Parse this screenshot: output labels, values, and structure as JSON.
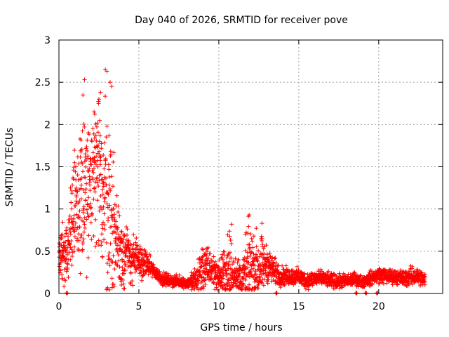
{
  "chart_data": {
    "type": "scatter",
    "title": "Day 040 of 2026, SRMTID for receiver pove",
    "xlabel": "GPS time / hours",
    "ylabel": "SRMTID / TECUs",
    "xlim": [
      0,
      24
    ],
    "ylim": [
      0,
      3
    ],
    "xticks": [
      0,
      5,
      10,
      15,
      20
    ],
    "xtick_labels": [
      "0",
      "5",
      "10",
      "15",
      "20"
    ],
    "yticks": [
      0,
      0.5,
      1,
      1.5,
      2,
      2.5,
      3
    ],
    "ytick_labels": [
      "0",
      "0.5",
      "1",
      "1.5",
      "2",
      "2.5",
      "3"
    ],
    "grid": true,
    "marker": "+",
    "series_color": "#ff0000",
    "trend": [
      [
        0.0,
        0.4
      ],
      [
        0.3,
        0.45
      ],
      [
        0.6,
        0.55
      ],
      [
        0.8,
        0.95
      ],
      [
        1.0,
        1.1
      ],
      [
        1.3,
        1.05
      ],
      [
        1.6,
        1.2
      ],
      [
        2.0,
        1.25
      ],
      [
        2.3,
        1.4
      ],
      [
        2.6,
        1.3
      ],
      [
        2.9,
        1.2
      ],
      [
        3.1,
        1.0
      ],
      [
        3.4,
        0.8
      ],
      [
        3.7,
        0.6
      ],
      [
        4.0,
        0.5
      ],
      [
        4.3,
        0.45
      ],
      [
        4.7,
        0.4
      ],
      [
        5.0,
        0.38
      ],
      [
        5.5,
        0.35
      ],
      [
        6.0,
        0.25
      ],
      [
        6.5,
        0.17
      ],
      [
        7.0,
        0.15
      ],
      [
        7.5,
        0.14
      ],
      [
        8.0,
        0.12
      ],
      [
        8.5,
        0.14
      ],
      [
        9.0,
        0.3
      ],
      [
        9.5,
        0.3
      ],
      [
        10.0,
        0.2
      ],
      [
        10.5,
        0.25
      ],
      [
        11.0,
        0.25
      ],
      [
        11.5,
        0.15
      ],
      [
        12.0,
        0.35
      ],
      [
        12.5,
        0.3
      ],
      [
        13.0,
        0.35
      ],
      [
        13.5,
        0.25
      ],
      [
        14.0,
        0.2
      ],
      [
        14.5,
        0.2
      ],
      [
        15.0,
        0.2
      ],
      [
        15.5,
        0.15
      ],
      [
        16.0,
        0.18
      ],
      [
        16.5,
        0.18
      ],
      [
        17.0,
        0.15
      ],
      [
        17.5,
        0.14
      ],
      [
        18.0,
        0.15
      ],
      [
        18.5,
        0.17
      ],
      [
        19.0,
        0.14
      ],
      [
        19.5,
        0.18
      ],
      [
        20.0,
        0.22
      ],
      [
        20.5,
        0.2
      ],
      [
        21.0,
        0.2
      ],
      [
        21.5,
        0.18
      ],
      [
        22.0,
        0.2
      ],
      [
        22.5,
        0.2
      ],
      [
        22.9,
        0.16
      ]
    ],
    "spread": [
      [
        0.0,
        0.2
      ],
      [
        0.6,
        0.35
      ],
      [
        1.0,
        0.45
      ],
      [
        1.6,
        0.75
      ],
      [
        2.0,
        0.6
      ],
      [
        2.5,
        0.75
      ],
      [
        3.0,
        0.9
      ],
      [
        3.5,
        0.5
      ],
      [
        4.0,
        0.3
      ],
      [
        5.0,
        0.15
      ],
      [
        6.0,
        0.06
      ],
      [
        7.0,
        0.05
      ],
      [
        8.0,
        0.04
      ],
      [
        9.0,
        0.2
      ],
      [
        10.0,
        0.12
      ],
      [
        10.7,
        0.35
      ],
      [
        11.0,
        0.12
      ],
      [
        11.8,
        0.35
      ],
      [
        12.5,
        0.3
      ],
      [
        13.0,
        0.15
      ],
      [
        14.0,
        0.08
      ],
      [
        15.0,
        0.07
      ],
      [
        16.0,
        0.07
      ],
      [
        17.0,
        0.06
      ],
      [
        18.0,
        0.06
      ],
      [
        19.0,
        0.05
      ],
      [
        20.0,
        0.07
      ],
      [
        21.0,
        0.06
      ],
      [
        22.0,
        0.08
      ],
      [
        23.0,
        0.06
      ]
    ],
    "notable_points": [
      {
        "x": 1.6,
        "y": 2.53
      },
      {
        "x": 2.9,
        "y": 2.65
      },
      {
        "x": 3.0,
        "y": 2.63
      },
      {
        "x": 3.2,
        "y": 2.5
      },
      {
        "x": 2.6,
        "y": 2.38
      },
      {
        "x": 1.5,
        "y": 2.35
      },
      {
        "x": 2.5,
        "y": 2.3
      },
      {
        "x": 2.2,
        "y": 2.15
      },
      {
        "x": 3.3,
        "y": 2.45
      },
      {
        "x": 11.9,
        "y": 0.93
      },
      {
        "x": 10.8,
        "y": 0.82
      },
      {
        "x": 12.7,
        "y": 0.83
      },
      {
        "x": 4.1,
        "y": 0.06
      },
      {
        "x": 3.9,
        "y": 0.1
      },
      {
        "x": 0.2,
        "y": 0.7
      }
    ],
    "zero_points": [
      0.5,
      13.6,
      18.6,
      19.2,
      19.9
    ],
    "sample_step_hours": 0.0083,
    "data_end_hours": 22.9
  }
}
